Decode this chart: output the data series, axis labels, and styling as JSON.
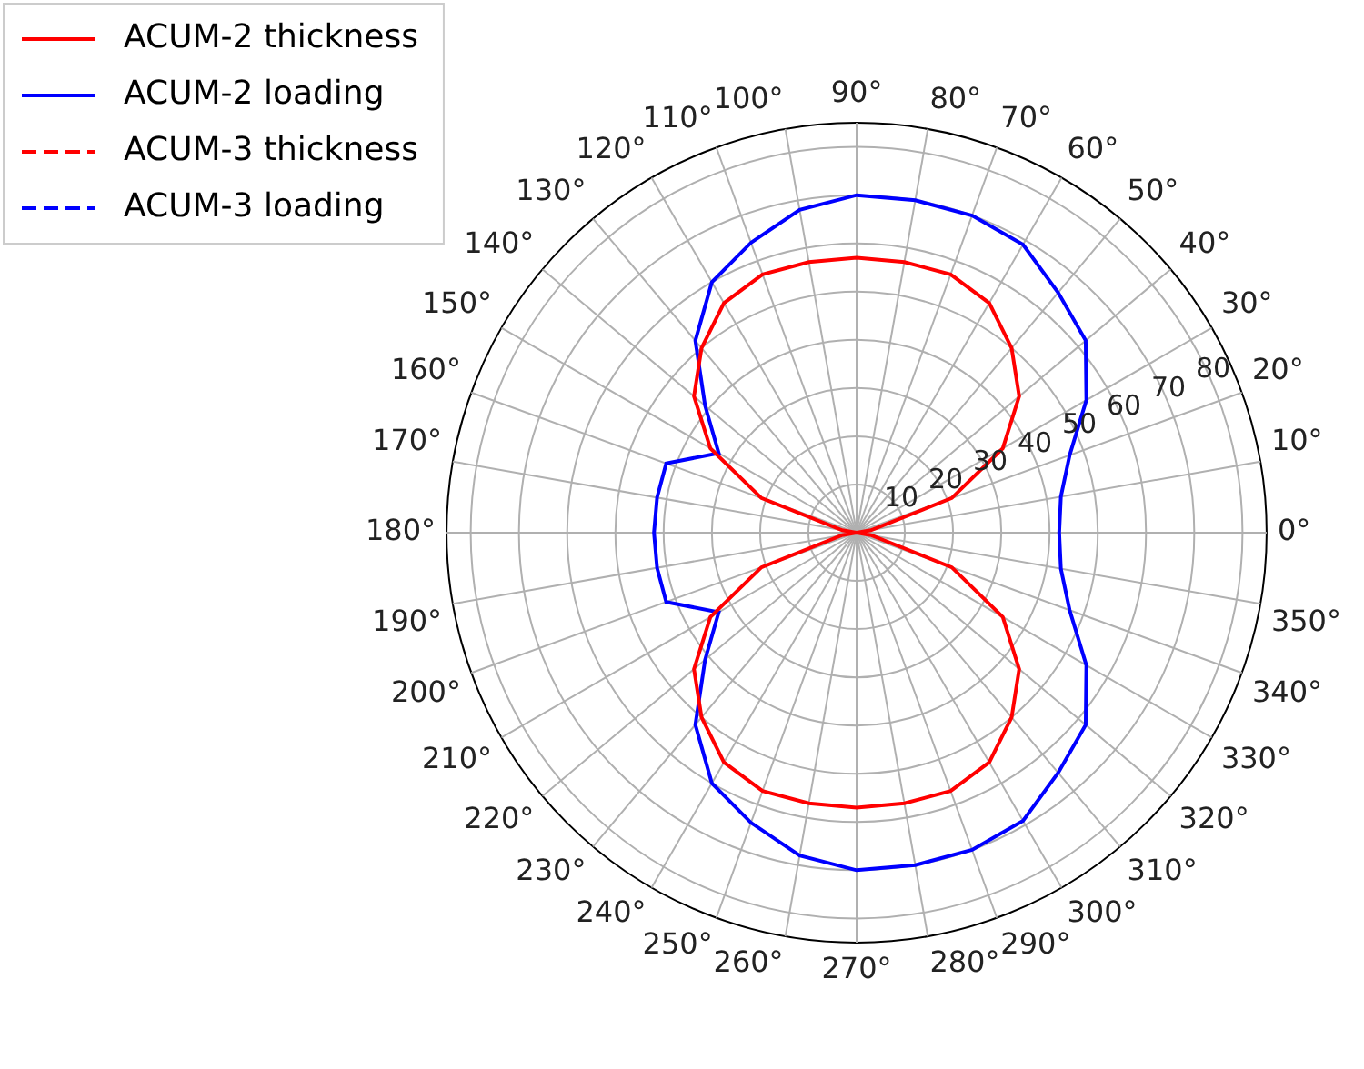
{
  "chart_data": {
    "type": "radar",
    "categories": [
      "90°",
      "80°",
      "70°",
      "60°",
      "50°",
      "40°",
      "30°",
      "20°",
      "10°",
      "0°",
      "350°",
      "340°",
      "330°",
      "320°",
      "310°",
      "300°",
      "290°",
      "280°",
      "270°",
      "260°",
      "250°",
      "240°",
      "230°",
      "220°",
      "210°",
      "200°",
      "190°",
      "180°",
      "170°",
      "160°",
      "150°",
      "140°",
      "130°",
      "120°",
      "110°",
      "100°"
    ],
    "series": [
      {
        "name": "ACUM-2 thickness",
        "color": "#ff0000",
        "line_style": "solid",
        "values": [
          57,
          57,
          57,
          55,
          50,
          44,
          35,
          21,
          3,
          0,
          3,
          21,
          35,
          44,
          50,
          55,
          57,
          57,
          57,
          57,
          57,
          55,
          50,
          44,
          35,
          21,
          3,
          0,
          3,
          21,
          35,
          44,
          50,
          55,
          57,
          57
        ]
      },
      {
        "name": "ACUM-2 loading",
        "color": "#0000ff",
        "line_style": "solid",
        "values": [
          70,
          70,
          70,
          69,
          65,
          62,
          55,
          47,
          43,
          42,
          43,
          47,
          55,
          62,
          65,
          69,
          70,
          70,
          70,
          68,
          64,
          60,
          52,
          41,
          33,
          42,
          42,
          42,
          42,
          42,
          33,
          41,
          52,
          60,
          64,
          68
        ]
      },
      {
        "name": "ACUM-3 thickness",
        "color": "#ff0000",
        "line_style": "dashed",
        "values": [
          null,
          null,
          null,
          null,
          null,
          null,
          null,
          null,
          null,
          null,
          null,
          null,
          null,
          null,
          null,
          null,
          null,
          null,
          null,
          null,
          null,
          null,
          null,
          null,
          null,
          null,
          null,
          null,
          null,
          null,
          null,
          null,
          null,
          null,
          null,
          null
        ]
      },
      {
        "name": "ACUM-3 loading",
        "color": "#0000ff",
        "line_style": "dashed",
        "values": [
          null,
          null,
          null,
          null,
          null,
          null,
          null,
          null,
          null,
          null,
          null,
          null,
          null,
          null,
          null,
          null,
          null,
          null,
          null,
          null,
          null,
          null,
          null,
          null,
          null,
          null,
          null,
          null,
          null,
          null,
          null,
          null,
          null,
          null,
          null,
          null
        ]
      }
    ],
    "ylim": [
      0,
      85
    ],
    "yticks": [
      10,
      20,
      30,
      40,
      50,
      60,
      70,
      80
    ],
    "grid": true,
    "legend": "top left",
    "marker": "none"
  }
}
